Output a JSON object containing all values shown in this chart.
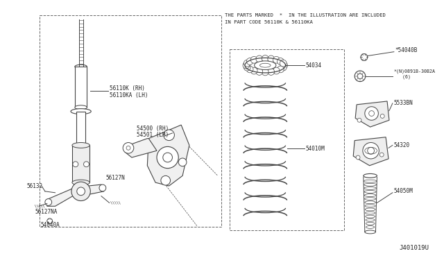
{
  "background_color": "#ffffff",
  "diagram_id": "J401019U",
  "note_line1": "THE PARTS MARKED  *  IN THE ILLUSTRATION ARE INCLUDED",
  "note_line2": "IN PART CODE 56110K & 56110KA",
  "lc": "#444444",
  "tc": "#222222",
  "fs_label": 5.5,
  "fs_note": 5.2,
  "fs_id": 6.5,
  "parts": {
    "56110K_RH": "56110K (RH)",
    "56110KA_LH": "56110KA (LH)",
    "54500_RH": "54500 (RH)",
    "54501_LH": "54501 (LH)",
    "56132": "56132",
    "56127N": "56127N",
    "56127NA": "56127NA",
    "54040A": "54040A",
    "54034": "54034",
    "54010M": "54010M",
    "54040B": "*54040B",
    "08918": "*(N)0891B-30B2A\n   (6)",
    "5533BN": "5533BN",
    "54320": "54320",
    "54050M": "54050M"
  }
}
